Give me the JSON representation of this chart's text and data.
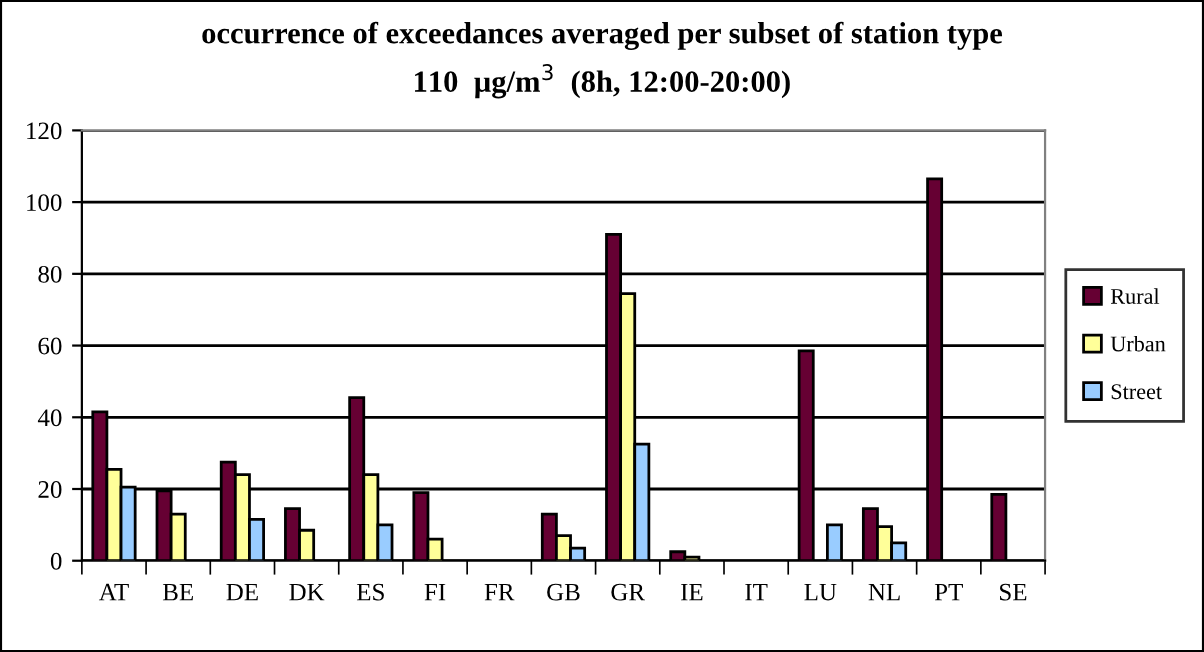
{
  "chart_data": {
    "type": "bar",
    "title": "occurrence of exceedances averaged per subset of station type",
    "subtitle": "110  µg/m$^{3}$  (8h, 12:00-20:00)",
    "categories": [
      "AT",
      "BE",
      "DE",
      "DK",
      "ES",
      "FI",
      "FR",
      "GB",
      "GR",
      "IE",
      "IT",
      "LU",
      "NL",
      "PT",
      "SE"
    ],
    "series": [
      {
        "name": "Rural",
        "color": "#660033",
        "values": [
          41.5,
          19.5,
          27.5,
          14.5,
          45.5,
          19,
          null,
          13,
          91,
          2.5,
          null,
          58.5,
          14.5,
          106.5,
          18.5
        ]
      },
      {
        "name": "Urban",
        "color": "#ffff99",
        "values": [
          25.5,
          13,
          24,
          8.5,
          24,
          6,
          null,
          7,
          74.5,
          1,
          null,
          null,
          9.5,
          null,
          null
        ]
      },
      {
        "name": "Street",
        "color": "#99ccff",
        "values": [
          20.5,
          null,
          11.5,
          null,
          10,
          null,
          null,
          3.5,
          32.5,
          null,
          null,
          10,
          5,
          null,
          null
        ]
      }
    ],
    "ylim": [
      0,
      120
    ],
    "yticks": [
      0,
      20,
      40,
      60,
      80,
      100,
      120
    ],
    "grid": "y",
    "legend": "right"
  }
}
